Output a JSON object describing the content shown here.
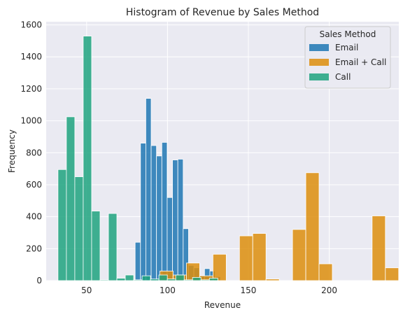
{
  "chart_data": {
    "type": "histogram",
    "title": "Histogram of Revenue by Sales Method",
    "xlabel": "Revenue",
    "ylabel": "Frequency",
    "xlim": [
      25,
      243
    ],
    "ylim": [
      0,
      1620
    ],
    "xticks": [
      50,
      100,
      150,
      200
    ],
    "yticks": [
      0,
      200,
      400,
      600,
      800,
      1000,
      1200,
      1400,
      1600
    ],
    "grid": true,
    "background": "#eaeaf2",
    "legend": {
      "title": "Sales Method",
      "placement": "top-right"
    },
    "series": [
      {
        "name": "Email",
        "color": "#1f77b4",
        "bins": [
          {
            "x0": 80.0,
            "x1": 83.3,
            "value": 240
          },
          {
            "x0": 83.3,
            "x1": 86.6,
            "value": 860
          },
          {
            "x0": 86.6,
            "x1": 89.9,
            "value": 1140
          },
          {
            "x0": 89.9,
            "x1": 93.2,
            "value": 845
          },
          {
            "x0": 93.2,
            "x1": 96.5,
            "value": 780
          },
          {
            "x0": 96.5,
            "x1": 99.8,
            "value": 865
          },
          {
            "x0": 99.8,
            "x1": 103.1,
            "value": 520
          },
          {
            "x0": 103.1,
            "x1": 106.4,
            "value": 755
          },
          {
            "x0": 106.4,
            "x1": 109.7,
            "value": 760
          },
          {
            "x0": 109.7,
            "x1": 113.0,
            "value": 325
          },
          {
            "x0": 113.0,
            "x1": 116.3,
            "value": 95
          },
          {
            "x0": 116.3,
            "x1": 119.6,
            "value": 80
          },
          {
            "x0": 119.6,
            "x1": 122.9,
            "value": 30
          },
          {
            "x0": 122.9,
            "x1": 126.2,
            "value": 75
          },
          {
            "x0": 126.2,
            "x1": 129.5,
            "value": 60
          },
          {
            "x0": 129.5,
            "x1": 132.8,
            "value": 25
          }
        ]
      },
      {
        "name": "Email + Call",
        "color": "#dd8e0d",
        "bins": [
          {
            "x0": 95.3,
            "x1": 103.5,
            "value": 60
          },
          {
            "x0": 103.5,
            "x1": 111.7,
            "value": 35
          },
          {
            "x0": 111.7,
            "x1": 119.9,
            "value": 110
          },
          {
            "x0": 119.9,
            "x1": 128.1,
            "value": 30
          },
          {
            "x0": 128.1,
            "x1": 136.3,
            "value": 165
          },
          {
            "x0": 136.3,
            "x1": 144.5,
            "value": 0
          },
          {
            "x0": 144.5,
            "x1": 152.7,
            "value": 280
          },
          {
            "x0": 152.7,
            "x1": 160.9,
            "value": 295
          },
          {
            "x0": 160.9,
            "x1": 169.1,
            "value": 10
          },
          {
            "x0": 169.1,
            "x1": 177.3,
            "value": 0
          },
          {
            "x0": 177.3,
            "x1": 185.5,
            "value": 320
          },
          {
            "x0": 185.5,
            "x1": 193.7,
            "value": 675
          },
          {
            "x0": 193.7,
            "x1": 201.9,
            "value": 105
          },
          {
            "x0": 201.9,
            "x1": 210.1,
            "value": 0
          },
          {
            "x0": 210.1,
            "x1": 218.3,
            "value": 0
          },
          {
            "x0": 218.3,
            "x1": 226.5,
            "value": 0
          },
          {
            "x0": 226.5,
            "x1": 234.7,
            "value": 405
          },
          {
            "x0": 234.7,
            "x1": 242.9,
            "value": 80
          }
        ]
      },
      {
        "name": "Call",
        "color": "#1fa37f",
        "bins": [
          {
            "x0": 32.3,
            "x1": 37.5,
            "value": 695
          },
          {
            "x0": 37.5,
            "x1": 42.7,
            "value": 1025
          },
          {
            "x0": 42.7,
            "x1": 47.9,
            "value": 650
          },
          {
            "x0": 47.9,
            "x1": 53.1,
            "value": 1530
          },
          {
            "x0": 53.1,
            "x1": 58.3,
            "value": 435
          },
          {
            "x0": 58.3,
            "x1": 63.5,
            "value": 5
          },
          {
            "x0": 63.5,
            "x1": 68.7,
            "value": 420
          },
          {
            "x0": 68.7,
            "x1": 73.9,
            "value": 15
          },
          {
            "x0": 73.9,
            "x1": 79.1,
            "value": 35
          },
          {
            "x0": 79.1,
            "x1": 84.3,
            "value": 5
          },
          {
            "x0": 84.3,
            "x1": 89.5,
            "value": 30
          },
          {
            "x0": 89.5,
            "x1": 94.7,
            "value": 10
          },
          {
            "x0": 94.7,
            "x1": 99.9,
            "value": 35
          },
          {
            "x0": 99.9,
            "x1": 105.1,
            "value": 10
          },
          {
            "x0": 105.1,
            "x1": 110.3,
            "value": 35
          },
          {
            "x0": 110.3,
            "x1": 115.5,
            "value": 5
          },
          {
            "x0": 115.5,
            "x1": 120.7,
            "value": 20
          },
          {
            "x0": 120.7,
            "x1": 125.9,
            "value": 5
          },
          {
            "x0": 125.9,
            "x1": 131.1,
            "value": 15
          }
        ]
      }
    ]
  }
}
